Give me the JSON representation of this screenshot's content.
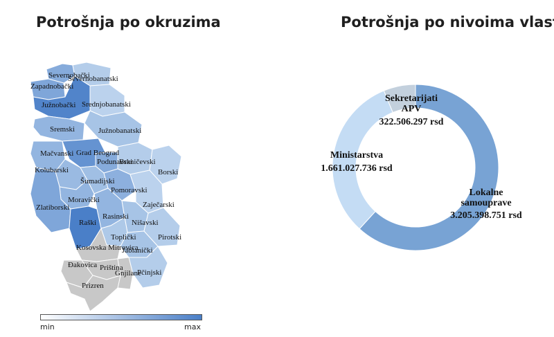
{
  "map_title": "Potrošnja po okruzima",
  "donut_title": "Potrošnja po nivoima vlasti",
  "legend": {
    "min": "min",
    "max": "max",
    "min_color": "#ffffff",
    "max_color": "#4a7fc8"
  },
  "districts": [
    {
      "name": "Severnobački",
      "level": 0.55
    },
    {
      "name": "Severnobanatski",
      "level": 0.2
    },
    {
      "name": "Zapadnobački",
      "level": 0.6
    },
    {
      "name": "Južnobački",
      "level": 0.95
    },
    {
      "name": "Srednjobanatski",
      "level": 0.15
    },
    {
      "name": "Sremski",
      "level": 0.45
    },
    {
      "name": "Južnobanatski",
      "level": 0.3
    },
    {
      "name": "Mačvanski",
      "level": 0.45
    },
    {
      "name": "Grad Beograd",
      "level": 0.8
    },
    {
      "name": "Podunavski",
      "level": 0.55
    },
    {
      "name": "Braničevski",
      "level": 0.2
    },
    {
      "name": "Borski",
      "level": 0.15
    },
    {
      "name": "Kolubarski",
      "level": 0.4
    },
    {
      "name": "Šumadijski",
      "level": 0.35
    },
    {
      "name": "Pomoravski",
      "level": 0.5
    },
    {
      "name": "Zaječarski",
      "level": 0.15
    },
    {
      "name": "Moravički",
      "level": 0.45
    },
    {
      "name": "Zlatiborski",
      "level": 0.6
    },
    {
      "name": "Raški",
      "level": 1.0
    },
    {
      "name": "Rasinski",
      "level": 0.45
    },
    {
      "name": "Nišavski",
      "level": 0.3
    },
    {
      "name": "Toplički",
      "level": 0.25
    },
    {
      "name": "Pirotski",
      "level": 0.2
    },
    {
      "name": "Jablanički",
      "level": 0.3
    },
    {
      "name": "Kosovska Mitrovica",
      "level": null
    },
    {
      "name": "Pčinjski",
      "level": 0.2
    },
    {
      "name": "Đakovica",
      "level": null
    },
    {
      "name": "Priština",
      "level": null
    },
    {
      "name": "Gnjilane",
      "level": null
    },
    {
      "name": "Prizren",
      "level": null
    }
  ],
  "chart_data": {
    "type": "pie",
    "title": "Potrošnja po nivoima vlasti",
    "slices": [
      {
        "label": "Lokalne samouprave",
        "value_text": "3.205.398.751 rsd",
        "value": 3205398751,
        "color": "#78a3d4"
      },
      {
        "label": "Ministarstva",
        "value_text": "1.661.027.736 rsd",
        "value": 1661027736,
        "color": "#c4dcf4"
      },
      {
        "label": "Sekretarijati APV",
        "value_text": "322.506.297 rsd",
        "value": 322506297,
        "color": "#c3d0dd"
      }
    ]
  }
}
